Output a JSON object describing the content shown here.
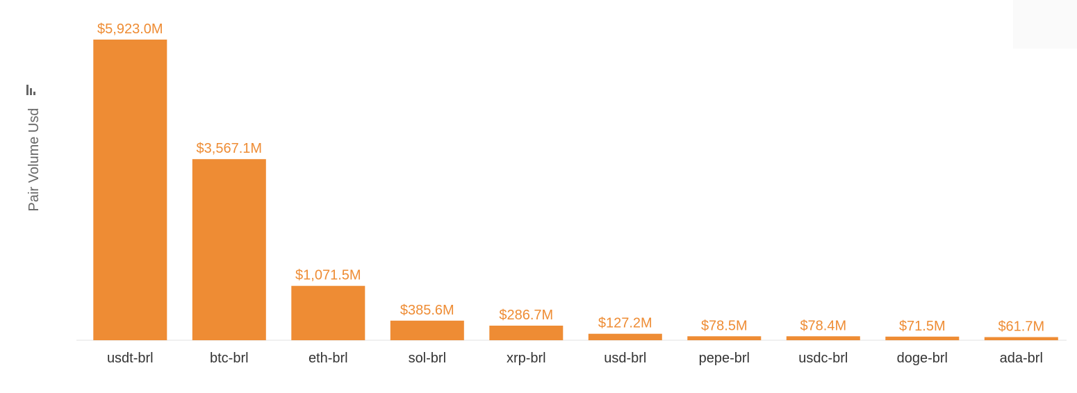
{
  "chart_data": {
    "type": "bar",
    "title": "",
    "xlabel": "",
    "ylabel": "Pair Volume Usd",
    "ylabel_icon": "sort-bars-icon",
    "categories": [
      "usdt-brl",
      "btc-brl",
      "eth-brl",
      "sol-brl",
      "xrp-brl",
      "usd-brl",
      "pepe-brl",
      "usdc-brl",
      "doge-brl",
      "ada-brl"
    ],
    "values": [
      5923.0,
      3567.1,
      1071.5,
      385.6,
      286.7,
      127.2,
      78.5,
      78.4,
      71.5,
      61.7
    ],
    "value_labels": [
      "$5,923.0M",
      "$3,567.1M",
      "$1,071.5M",
      "$385.6M",
      "$286.7M",
      "$127.2M",
      "$78.5M",
      "$78.4M",
      "$71.5M",
      "$61.7M"
    ],
    "unit": "USD millions",
    "ylim": [
      0,
      5923.0
    ],
    "grid": false,
    "legend": "none",
    "bar_color": "#ee8c34",
    "label_color": "#ee8c34"
  }
}
